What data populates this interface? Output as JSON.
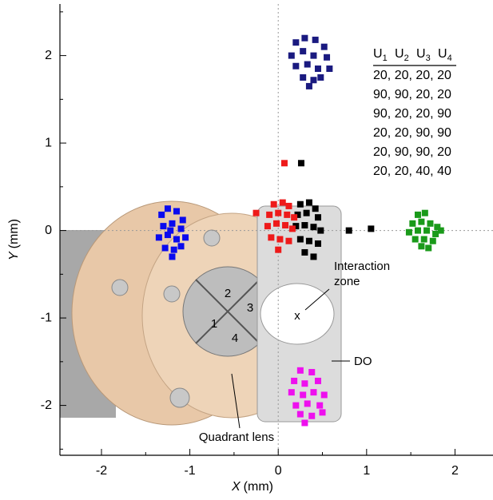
{
  "chart_data": {
    "type": "scatter",
    "xlabel": {
      "var": "X",
      "unit": "(mm)"
    },
    "ylabel": {
      "var": "Y",
      "unit": "(mm)"
    },
    "xlim": [
      -2.47,
      2.43
    ],
    "ylim": [
      -2.57,
      2.59
    ],
    "xticks": [
      -2,
      -1,
      0,
      1,
      2
    ],
    "yticks": [
      -2,
      -1,
      0,
      1,
      2
    ],
    "xminorticks": [
      -1.5,
      -0.5,
      0.5,
      1.5
    ],
    "yminorticks": [
      -2.5,
      -1.5,
      -0.5,
      0.5,
      1.5,
      2.5
    ],
    "zero_lines": true,
    "legend_header": [
      {
        "text": "U",
        "sub": "1"
      },
      {
        "text": "U",
        "sub": "2"
      },
      {
        "text": "U",
        "sub": "3"
      },
      {
        "text": "U",
        "sub": "4"
      }
    ],
    "series": [
      {
        "name": "20, 20, 20, 20",
        "color": "#000000",
        "x": [
          0.25,
          0.35,
          0.42,
          0.22,
          0.32,
          0.45,
          0.2,
          0.3,
          0.4,
          0.48,
          0.25,
          0.35,
          0.45,
          0.3,
          0.4,
          0.26,
          0.8,
          1.05
        ],
        "y": [
          0.3,
          0.32,
          0.25,
          0.18,
          0.2,
          0.15,
          0.05,
          0.06,
          0.04,
          0.0,
          -0.1,
          -0.12,
          -0.15,
          -0.25,
          -0.3,
          0.77,
          0.0,
          0.02
        ]
      },
      {
        "name": "90, 90, 20, 20",
        "color": "#1a9a1a",
        "x": [
          1.58,
          1.66,
          1.52,
          1.62,
          1.72,
          1.8,
          1.48,
          1.58,
          1.68,
          1.78,
          1.55,
          1.65,
          1.75,
          1.62,
          1.7,
          1.84
        ],
        "y": [
          0.18,
          0.2,
          0.08,
          0.1,
          0.08,
          0.04,
          -0.02,
          0.0,
          0.0,
          -0.04,
          -0.1,
          -0.1,
          -0.12,
          -0.18,
          -0.2,
          0.0
        ]
      },
      {
        "name": "90, 20, 20, 90",
        "color": "#1a1a80",
        "x": [
          0.2,
          0.3,
          0.42,
          0.52,
          0.15,
          0.28,
          0.4,
          0.55,
          0.2,
          0.33,
          0.45,
          0.58,
          0.28,
          0.4,
          0.35,
          0.48
        ],
        "y": [
          2.15,
          2.2,
          2.18,
          2.1,
          2.0,
          2.05,
          2.0,
          1.98,
          1.88,
          1.9,
          1.85,
          1.85,
          1.75,
          1.72,
          1.65,
          1.75
        ]
      },
      {
        "name": "20, 20, 90, 90",
        "color": "#0a0aee",
        "x": [
          -1.32,
          -1.25,
          -1.15,
          -1.08,
          -1.3,
          -1.2,
          -1.1,
          -1.35,
          -1.25,
          -1.15,
          -1.05,
          -1.28,
          -1.18,
          -1.1,
          -1.2,
          -1.22
        ],
        "y": [
          0.18,
          0.25,
          0.22,
          0.12,
          0.05,
          0.08,
          0.02,
          -0.08,
          -0.05,
          -0.1,
          -0.08,
          -0.2,
          -0.22,
          -0.18,
          -0.3,
          0.0
        ]
      },
      {
        "name": "20, 90, 90, 20",
        "color": "#ee10ee",
        "x": [
          0.25,
          0.38,
          0.18,
          0.3,
          0.45,
          0.15,
          0.28,
          0.4,
          0.52,
          0.2,
          0.33,
          0.47,
          0.25,
          0.38,
          0.3,
          0.5
        ],
        "y": [
          -1.6,
          -1.62,
          -1.72,
          -1.75,
          -1.72,
          -1.85,
          -1.88,
          -1.85,
          -1.88,
          -2.0,
          -1.98,
          -2.0,
          -2.1,
          -2.12,
          -2.2,
          -2.08
        ]
      },
      {
        "name": "20, 20, 40, 40",
        "color": "#ee1a1a",
        "x": [
          -0.05,
          0.05,
          0.12,
          -0.1,
          0.0,
          0.1,
          0.18,
          -0.12,
          -0.02,
          0.08,
          0.16,
          -0.08,
          0.02,
          0.12,
          0.0,
          0.07,
          -0.25
        ],
        "y": [
          0.3,
          0.32,
          0.28,
          0.18,
          0.2,
          0.18,
          0.15,
          0.05,
          0.08,
          0.06,
          0.02,
          -0.08,
          -0.1,
          -0.12,
          -0.22,
          0.77,
          0.2
        ]
      }
    ],
    "annotations": {
      "segments": [
        "1",
        "2",
        "3",
        "4"
      ],
      "interaction": [
        "Interaction",
        "zone"
      ],
      "center_mark": "x",
      "do": "DO",
      "lens": "Quadrant lens"
    }
  }
}
